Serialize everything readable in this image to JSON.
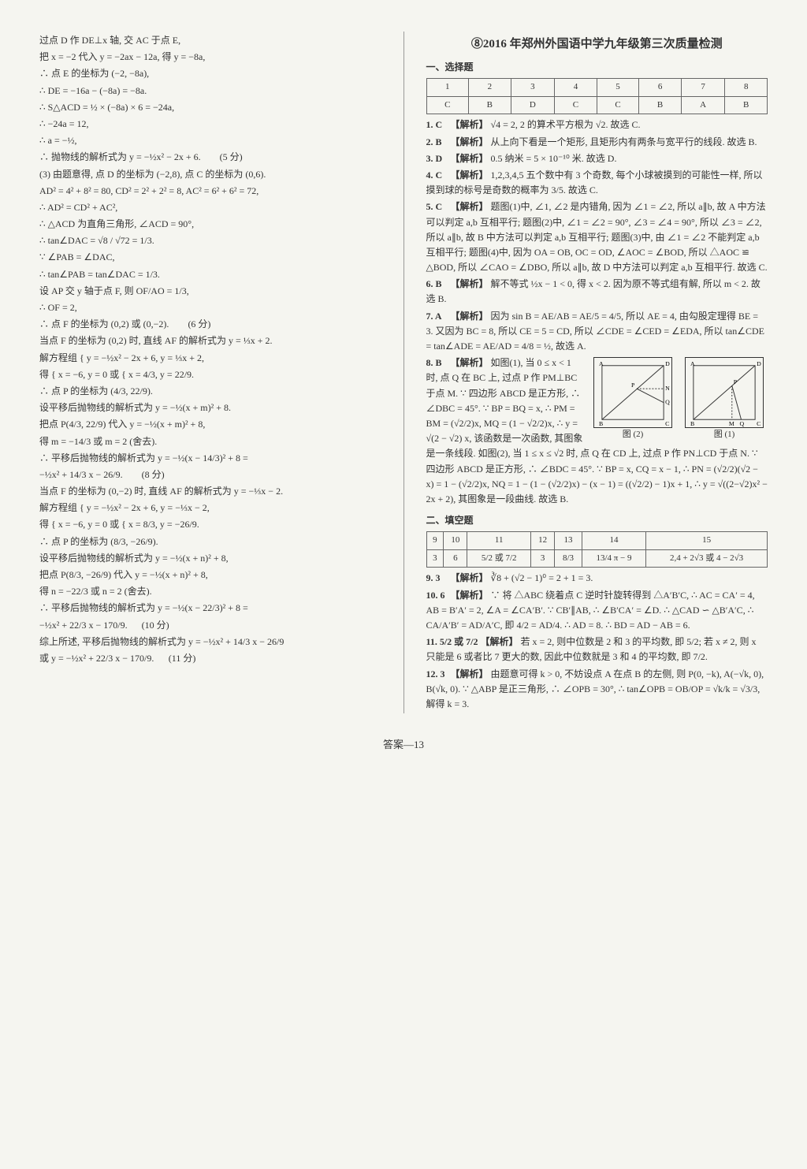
{
  "left": {
    "lines": [
      "过点 D 作 DE⊥x 轴, 交 AC 于点 E,",
      "把 x = −2 代入 y = −2ax − 12a, 得 y = −8a,",
      "∴ 点 E 的坐标为 (−2, −8a),",
      "∴ DE = −16a − (−8a) = −8a.",
      "∴ S△ACD = ½ × (−8a) × 6 = −24a,",
      "∴ −24a = 12,",
      "∴ a = −½,",
      "∴ 抛物线的解析式为 y = −½x² − 2x + 6.",
      "(3) 由题意得, 点 D 的坐标为 (−2,8), 点 C 的坐标为 (0,6).",
      "AD² = 4² + 8² = 80, CD² = 2² + 2² = 8, AC² = 6² + 6² = 72,",
      "∴ AD² = CD² + AC²,",
      "∴ △ACD 为直角三角形, ∠ACD = 90°,",
      "∴ tan∠DAC = √8 / √72 = 1/3.",
      "∵ ∠PAB = ∠DAC,",
      "∴ tan∠PAB = tan∠DAC = 1/3.",
      "设 AP 交 y 轴于点 F, 则 OF/AO = 1/3,",
      "∴ OF = 2,",
      "∴ 点 F 的坐标为 (0,2) 或 (0,−2).",
      "当点 F 的坐标为 (0,2) 时, 直线 AF 的解析式为 y = ⅓x + 2.",
      "解方程组 { y = −½x² − 2x + 6,  y = ⅓x + 2,",
      "得 { x = −6, y = 0  或  { x = 4/3, y = 22/9.",
      "∴ 点 P 的坐标为 (4/3, 22/9).",
      "设平移后抛物线的解析式为 y = −½(x + m)² + 8.",
      "把点 P(4/3, 22/9) 代入 y = −½(x + m)² + 8,",
      "得 m = −14/3 或 m = 2 (舍去).",
      "∴ 平移后抛物线的解析式为 y = −½(x − 14/3)² + 8 =",
      "−½x² + 14/3 x − 26/9.",
      "当点 F 的坐标为 (0,−2) 时, 直线 AF 的解析式为 y = −⅓x − 2.",
      "解方程组 { y = −½x² − 2x + 6,  y = −⅓x − 2,",
      "得 { x = −6, y = 0  或  { x = 8/3, y = −26/9.",
      "∴ 点 P 的坐标为 (8/3, −26/9).",
      "设平移后抛物线的解析式为 y = −½(x + n)² + 8,",
      "把点 P(8/3, −26/9) 代入 y = −½(x + n)² + 8,",
      "得 n = −22/3 或 n = 2 (舍去).",
      "∴ 平移后抛物线的解析式为 y = −½(x − 22/3)² + 8 =",
      "−½x² + 22/3 x − 170/9.",
      "综上所述, 平移后抛物线的解析式为 y = −½x² + 14/3 x − 26/9",
      "或 y = −½x² + 22/3 x − 170/9."
    ],
    "scores": [
      "(5 分)",
      "(6 分)",
      "(8 分)",
      "(10 分)",
      "(11 分)"
    ],
    "score_positions": [
      7,
      17,
      26,
      35,
      37
    ]
  },
  "right": {
    "title": "⑧2016 年郑州外国语中学九年级第三次质量检测",
    "mc_head": "一、选择题",
    "mc_table": {
      "cols": [
        "1",
        "2",
        "3",
        "4",
        "5",
        "6",
        "7",
        "8"
      ],
      "ans": [
        "C",
        "B",
        "D",
        "C",
        "C",
        "B",
        "A",
        "B"
      ]
    },
    "mc_exp": [
      {
        "n": "1. C",
        "t": "【解析】 √4 = 2, 2 的算术平方根为 √2. 故选 C."
      },
      {
        "n": "2. B",
        "t": "【解析】 从上向下看是一个矩形, 且矩形内有两条与宽平行的线段. 故选 B."
      },
      {
        "n": "3. D",
        "t": "【解析】 0.5 纳米 = 5 × 10⁻¹⁰ 米. 故选 D."
      },
      {
        "n": "4. C",
        "t": "【解析】 1,2,3,4,5 五个数中有 3 个奇数, 每个小球被摸到的可能性一样, 所以摸到球的标号是奇数的概率为 3/5. 故选 C."
      },
      {
        "n": "5. C",
        "t": "【解析】 题图(1)中, ∠1, ∠2 是内错角, 因为 ∠1 = ∠2, 所以 a∥b, 故 A 中方法可以判定 a,b 互相平行; 题图(2)中, ∠1 = ∠2 = 90°, ∠3 = ∠4 = 90°, 所以 ∠3 = ∠2, 所以 a∥b, 故 B 中方法可以判定 a,b 互相平行; 题图(3)中, 由 ∠1 = ∠2 不能判定 a,b 互相平行; 题图(4)中, 因为 OA = OB, OC = OD, ∠AOC = ∠BOD, 所以 △AOC ≌ △BOD, 所以 ∠CAO = ∠DBO, 所以 a∥b, 故 D 中方法可以判定 a,b 互相平行. 故选 C."
      },
      {
        "n": "6. B",
        "t": "【解析】 解不等式 ½x − 1 < 0, 得 x < 2. 因为原不等式组有解, 所以 m < 2. 故选 B."
      },
      {
        "n": "7. A",
        "t": "【解析】 因为 sin B = AE/AB = AE/5 = 4/5, 所以 AE = 4, 由勾股定理得 BE = 3. 又因为 BC = 8, 所以 CE = 5 = CD, 所以 ∠CDE = ∠CED = ∠EDA, 所以 tan∠CDE = tan∠ADE = AE/AD = 4/8 = ½, 故选 A."
      },
      {
        "n": "8. B",
        "t": "【解析】 如图(1), 当 0 ≤ x < 1 时, 点 Q 在 BC 上, 过点 P 作 PM⊥BC 于点 M. ∵ 四边形 ABCD 是正方形, ∴ ∠DBC = 45°. ∵ BP = BQ = x, ∴ PM = BM = (√2/2)x, MQ = (1 − √2/2)x, ∴ y = √(2 − √2) x, 该函数是一次函数, 其图象是一条线段. 如图(2), 当 1 ≤ x ≤ √2 时, 点 Q 在 CD 上, 过点 P 作 PN⊥CD 于点 N. ∵ 四边形 ABCD 是正方形, ∴ ∠BDC = 45°. ∵ BP = x, CQ = x − 1, ∴ PN = (√2/2)(√2 − x) = 1 − (√2/2)x, NQ = 1 − (1 − (√2/2)x) − (x − 1) = ((√2/2) − 1)x + 1, ∴ y = √((2−√2)x² − 2x + 2), 其图象是一段曲线. 故选 B."
      }
    ],
    "fill_head": "二、填空题",
    "fill_table": {
      "cols": [
        "9",
        "10",
        "11",
        "12",
        "13",
        "14",
        "15"
      ],
      "ans": [
        "3",
        "6",
        "5/2 或 7/2",
        "3",
        "8/3",
        "13/4 π − 9",
        "2,4 + 2√3 或 4 − 2√3"
      ]
    },
    "fill_exp": [
      {
        "n": "9. 3",
        "t": "【解析】 ∛8 + (√2 − 1)⁰ = 2 + 1 = 3."
      },
      {
        "n": "10. 6",
        "t": "【解析】 ∵ 将 △ABC 绕着点 C 逆时针旋转得到 △A′B′C, ∴ AC = CA′ = 4, AB = B′A′ = 2, ∠A = ∠CA′B′. ∵ CB′∥AB, ∴ ∠B′CA′ = ∠D. ∴ △CAD ∽ △B′A′C, ∴ CA/A′B′ = AD/A′C, 即 4/2 = AD/4. ∴ AD = 8. ∴ BD = AD − AB = 6."
      },
      {
        "n": "11. 5/2 或 7/2",
        "t": "【解析】 若 x = 2, 则中位数是 2 和 3 的平均数, 即 5/2; 若 x ≠ 2, 则 x 只能是 6 或者比 7 更大的数, 因此中位数就是 3 和 4 的平均数, 即 7/2."
      },
      {
        "n": "12. 3",
        "t": "【解析】 由题意可得 k > 0, 不妨设点 A 在点 B 的左侧, 则 P(0, −k), A(−√k, 0), B(√k, 0). ∵ △ABP 是正三角形, ∴ ∠OPB = 30°, ∴ tan∠OPB = OB/OP = √k/k = √3/3, 解得 k = 3."
      }
    ],
    "fig1_label": "图 (1)",
    "fig2_label": "图 (2)",
    "fig1_points": [
      "A",
      "D",
      "P",
      "B",
      "M",
      "Q",
      "C"
    ],
    "fig2_points": [
      "A",
      "D",
      "P",
      "N",
      "Q",
      "B",
      "C"
    ]
  },
  "footer": "答案—13"
}
